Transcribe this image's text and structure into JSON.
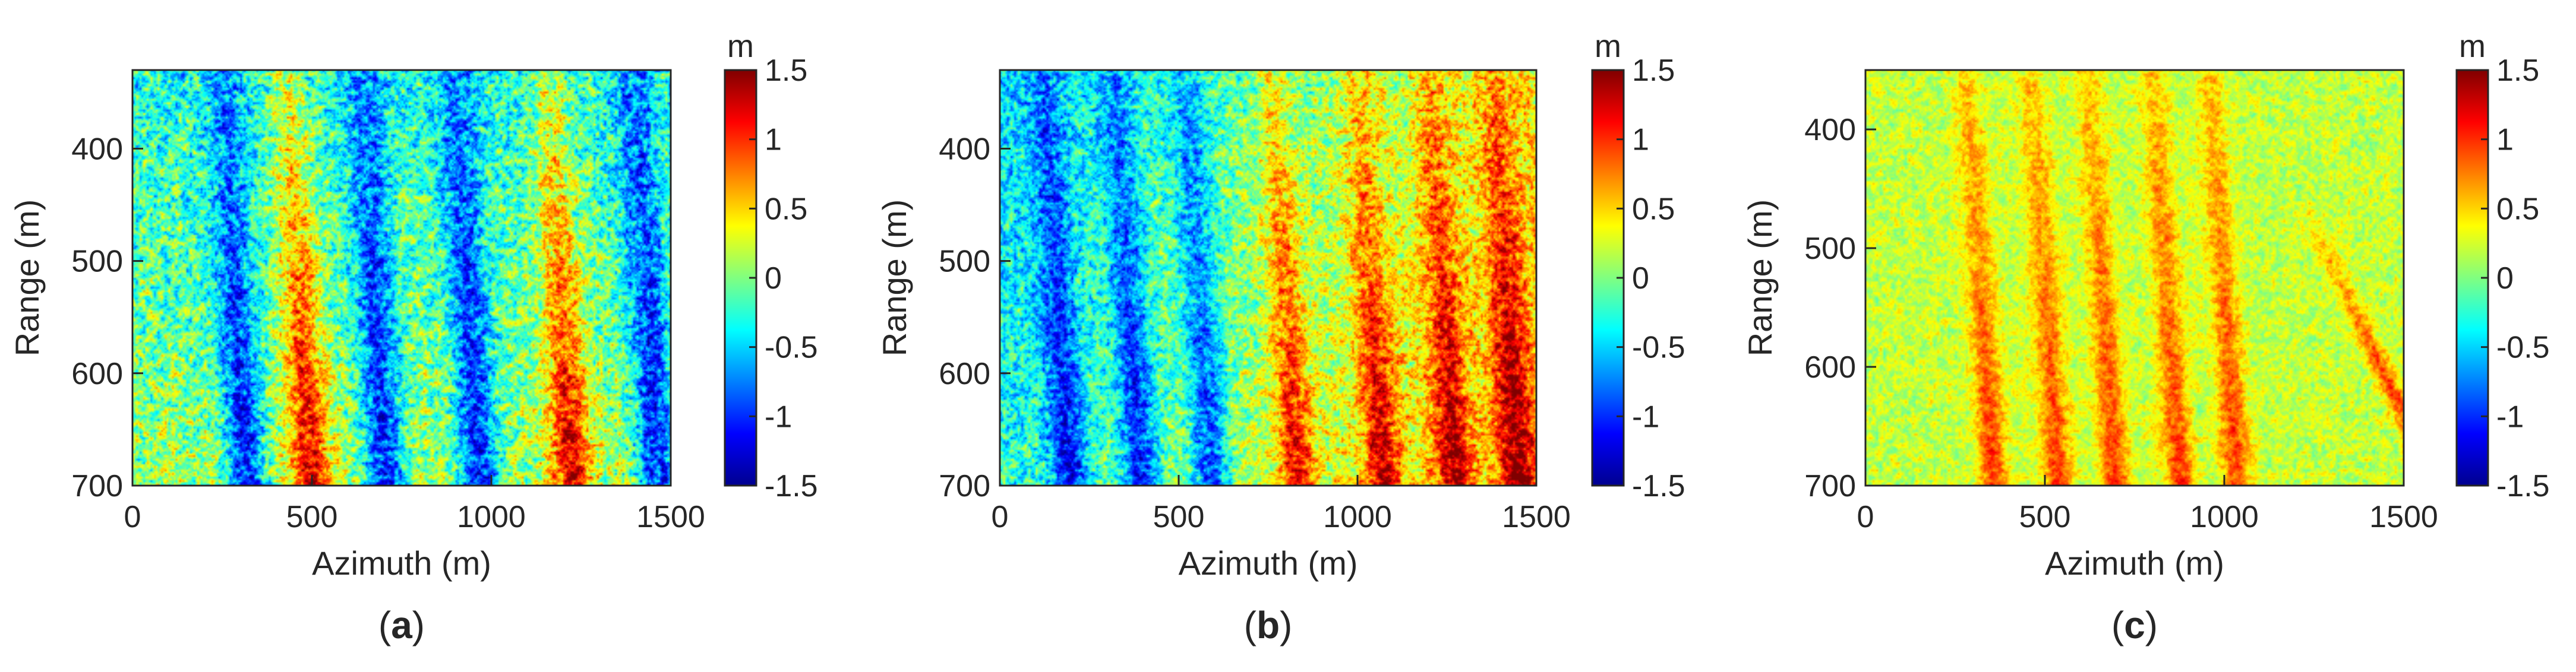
{
  "colormap": [
    "#00008f",
    "#0000ff",
    "#0080ff",
    "#00ffff",
    "#80ff80",
    "#ffff00",
    "#ff8000",
    "#ff0000",
    "#800000"
  ],
  "chart_data": [
    {
      "type": "heatmap",
      "label_paren_open": "(",
      "label_letter": "a",
      "label_paren_close": ")",
      "xlabel": "Azimuth (m)",
      "ylabel": "Range (m)",
      "xlim": [
        0,
        1500
      ],
      "ylim": [
        330,
        700
      ],
      "xticks": [
        0,
        500,
        1000,
        1500
      ],
      "yticks": [
        400,
        500,
        600,
        700
      ],
      "xtick_labels": [
        "0",
        "500",
        "1000",
        "1500"
      ],
      "ytick_labels": [
        "400",
        "500",
        "600",
        "700"
      ],
      "colorbar": {
        "unit": "m",
        "range": [
          -1.5,
          1.5
        ],
        "ticks": [
          1.5,
          1,
          0.5,
          0,
          -0.5,
          -1,
          -1.5
        ],
        "tick_labels": [
          "1.5",
          "1",
          "0.5",
          "0",
          "-0.5",
          "-1",
          "-1.5"
        ]
      },
      "pattern": {
        "base": -0.1,
        "noise": 0.45,
        "crests_x_at_top": [
          250,
          430,
          640,
          900,
          1160,
          1400
        ],
        "crest_signs": [
          -1,
          1,
          -1,
          -1,
          1,
          -1
        ],
        "crest_amplitude": 0.9,
        "crest_width": 55,
        "slope_x_per_range": 0.18,
        "gradient_x": 0,
        "gradient_range": 0.4,
        "feature": null
      }
    },
    {
      "type": "heatmap",
      "label_paren_open": "(",
      "label_letter": "b",
      "label_paren_close": ")",
      "xlabel": "Azimuth (m)",
      "ylabel": "Range (m)",
      "xlim": [
        0,
        1500
      ],
      "ylim": [
        330,
        700
      ],
      "xticks": [
        0,
        500,
        1000,
        1500
      ],
      "yticks": [
        400,
        500,
        600,
        700
      ],
      "xtick_labels": [
        "0",
        "500",
        "1000",
        "1500"
      ],
      "ytick_labels": [
        "400",
        "500",
        "600",
        "700"
      ],
      "colorbar": {
        "unit": "m",
        "range": [
          -1.5,
          1.5
        ],
        "ticks": [
          1.5,
          1,
          0.5,
          0,
          -0.5,
          -1,
          -1.5
        ],
        "tick_labels": [
          "1.5",
          "1",
          "0.5",
          "0",
          "-0.5",
          "-1",
          "-1.5"
        ]
      },
      "pattern": {
        "base": 0.05,
        "noise": 0.4,
        "crests_x_at_top": [
          120,
          320,
          520,
          760,
          1000,
          1200,
          1380
        ],
        "crest_signs": [
          -1,
          -1,
          -1,
          1,
          1,
          1,
          1
        ],
        "crest_amplitude": 0.75,
        "crest_width": 50,
        "slope_x_per_range": 0.2,
        "gradient_x": 0.45,
        "gradient_range": 0.2,
        "feature": null
      }
    },
    {
      "type": "heatmap",
      "label_paren_open": "(",
      "label_letter": "c",
      "label_paren_close": ")",
      "xlabel": "Azimuth (m)",
      "ylabel": "Range (m)",
      "xlim": [
        0,
        1500
      ],
      "ylim": [
        350,
        700
      ],
      "xticks": [
        0,
        500,
        1000,
        1500
      ],
      "yticks": [
        400,
        500,
        600,
        700
      ],
      "xtick_labels": [
        "0",
        "500",
        "1000",
        "1500"
      ],
      "ytick_labels": [
        "400",
        "500",
        "600",
        "700"
      ],
      "colorbar": {
        "unit": "m",
        "range": [
          -1.5,
          1.5
        ],
        "ticks": [
          1.5,
          1,
          0.5,
          0,
          -0.5,
          -1,
          -1.5
        ],
        "tick_labels": [
          "1.5",
          "1",
          "0.5",
          "0",
          "-0.5",
          "-1",
          "-1.5"
        ]
      },
      "pattern": {
        "base": 0.2,
        "noise": 0.22,
        "crests_x_at_top": [
          280,
          460,
          620,
          800,
          960
        ],
        "crest_signs": [
          1,
          1,
          1,
          1,
          1
        ],
        "crest_amplitude": 0.6,
        "crest_width": 40,
        "slope_x_per_range": 0.22,
        "gradient_x": 0,
        "gradient_range": 0,
        "feature": {
          "x_start": 1250,
          "range_start": 480,
          "x_end": 1500,
          "range_end": 640,
          "amplitude": 0.7
        }
      }
    }
  ]
}
